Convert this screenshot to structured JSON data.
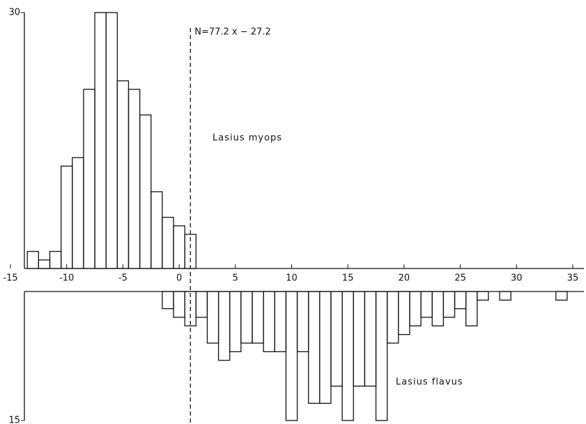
{
  "chart_data": [
    {
      "type": "histogram",
      "bins": [
        -13.5,
        -12.5,
        -11.5,
        -10.5,
        -9.5,
        -8.5,
        -7.5,
        -6.5,
        -5.5,
        -4.5,
        -3.5,
        -2.5,
        -1.5,
        -0.5,
        0.5,
        1.5
      ],
      "series": [
        {
          "name": "Lasius myops",
          "color": "#111111",
          "values": [
            2,
            1,
            2,
            12,
            13,
            21,
            30,
            30,
            22,
            21,
            18,
            9,
            6,
            5,
            4
          ]
        }
      ],
      "xlim": [
        -15,
        35
      ],
      "xticks": [
        -15,
        -10,
        -5,
        0,
        5,
        10,
        15,
        20,
        25,
        30,
        35
      ],
      "ylim": [
        0,
        30
      ],
      "yticks": [
        30
      ],
      "reference_line": {
        "x": 1,
        "label": "N=77.2 x − 27.2"
      }
    },
    {
      "type": "histogram",
      "inverted": true,
      "bins": [
        -1.5,
        -0.5,
        0.5,
        1.5,
        2.5,
        3.5,
        4.5,
        5.5,
        6.5,
        7.5,
        8.5,
        9.5,
        10.5,
        11.5,
        12.5,
        13.5,
        14.5,
        15.5,
        16.5,
        17.5,
        18.5,
        19.5,
        20.5,
        21.5,
        22.5,
        23.5,
        24.5,
        25.5,
        26.5,
        27.5,
        28.5,
        29.5,
        30.5,
        31.5,
        32.5,
        33.5,
        34.5
      ],
      "series": [
        {
          "name": "Lasius flavus",
          "color": "#111111",
          "values": [
            2,
            3,
            4,
            3,
            6,
            8,
            7,
            6,
            6,
            7,
            7,
            15,
            7,
            13,
            13,
            11,
            15,
            11,
            11,
            15,
            6,
            5,
            4,
            3,
            4,
            3,
            2,
            4,
            1,
            0,
            1,
            0,
            0,
            0,
            0,
            1
          ]
        }
      ],
      "xlim": [
        -15,
        35
      ],
      "ylim": [
        0,
        15
      ],
      "yticks": [
        15
      ]
    }
  ]
}
